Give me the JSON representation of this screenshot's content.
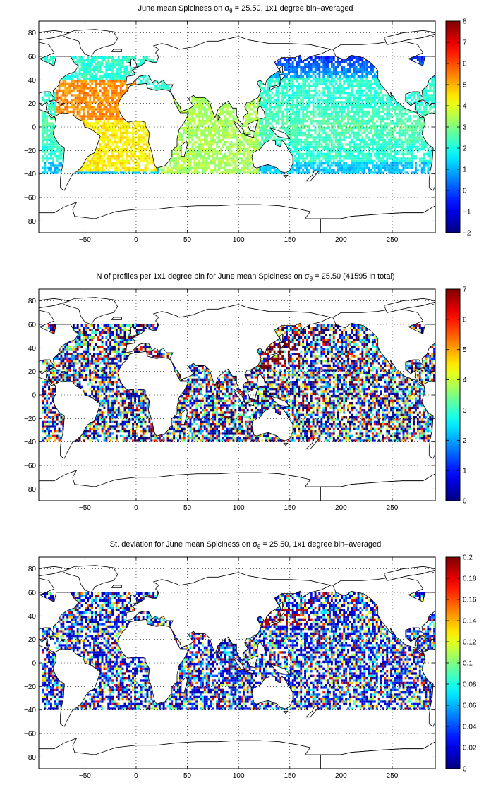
{
  "colors": {
    "land": "#ffffff",
    "coast": "#000000",
    "grid": "#000000",
    "colormap": "jet"
  },
  "chart_data": [
    {
      "type": "heatmap",
      "title_parts": [
        "June mean Spiciness on ",
        "σ",
        "θ",
        " = 25.50, 1x1 degree bin–averaged"
      ],
      "xlim": [
        -95,
        292
      ],
      "ylim": [
        -90,
        90
      ],
      "xticks": [
        -50,
        0,
        50,
        100,
        150,
        200,
        250
      ],
      "yticks": [
        -80,
        -60,
        -40,
        -20,
        0,
        20,
        40,
        60,
        80
      ],
      "x_tick_labels": [
        "−50",
        "0",
        "50",
        "100",
        "150",
        "200",
        "250"
      ],
      "y_tick_labels": [
        "−80",
        "−60",
        "−40",
        "−20",
        "0",
        "20",
        "40",
        "60",
        "80"
      ],
      "grid": true,
      "colorbar": {
        "range": [
          -2,
          8
        ],
        "ticks": [
          -2,
          -1,
          0,
          1,
          2,
          3,
          4,
          5,
          6,
          7,
          8
        ],
        "tick_labels": [
          "−2",
          "−1",
          "0",
          "1",
          "2",
          "3",
          "4",
          "5",
          "6",
          "7",
          "8"
        ]
      },
      "field": "spiciness",
      "value_summary": {
        "north_atlantic_subtropics": 5.5,
        "south_atlantic": 4.5,
        "indian_ocean": 3.5,
        "tropical_pacific": 2.5,
        "north_pacific_subpolar": -0.5,
        "southern_edge": 1.0
      }
    },
    {
      "type": "heatmap",
      "title_parts": [
        "N of profiles per 1x1 degree bin for June mean Spiciness on ",
        "σ",
        "θ",
        " = 25.50 (41595 in total)"
      ],
      "total_profiles": 41595,
      "xlim": [
        -95,
        292
      ],
      "ylim": [
        -90,
        90
      ],
      "xticks": [
        -50,
        0,
        50,
        100,
        150,
        200,
        250
      ],
      "yticks": [
        -80,
        -60,
        -40,
        -20,
        0,
        20,
        40,
        60,
        80
      ],
      "x_tick_labels": [
        "−50",
        "0",
        "50",
        "100",
        "150",
        "200",
        "250"
      ],
      "y_tick_labels": [
        "−80",
        "−60",
        "−40",
        "−20",
        "0",
        "20",
        "40",
        "60",
        "80"
      ],
      "grid": true,
      "colorbar": {
        "range": [
          0,
          7
        ],
        "ticks": [
          0,
          1,
          2,
          3,
          4,
          5,
          6,
          7
        ],
        "tick_labels": [
          "0",
          "1",
          "2",
          "3",
          "4",
          "5",
          "6",
          "7"
        ]
      },
      "field": "count"
    },
    {
      "type": "heatmap",
      "title_parts": [
        "St. deviation for June mean Spiciness on ",
        "σ",
        "θ",
        " = 25.50, 1x1 degree bin–averaged"
      ],
      "xlim": [
        -95,
        292
      ],
      "ylim": [
        -90,
        90
      ],
      "xticks": [
        -50,
        0,
        50,
        100,
        150,
        200,
        250
      ],
      "yticks": [
        -80,
        -60,
        -40,
        -20,
        0,
        20,
        40,
        60,
        80
      ],
      "x_tick_labels": [
        "−50",
        "0",
        "50",
        "100",
        "150",
        "200",
        "250"
      ],
      "y_tick_labels": [
        "−80",
        "−60",
        "−40",
        "−20",
        "0",
        "20",
        "40",
        "60",
        "80"
      ],
      "grid": true,
      "colorbar": {
        "range": [
          0,
          0.2
        ],
        "ticks": [
          0,
          0.02,
          0.04,
          0.06,
          0.08,
          0.1,
          0.12,
          0.14,
          0.16,
          0.18,
          0.2
        ],
        "tick_labels": [
          "0",
          "0.02",
          "0.04",
          "0.06",
          "0.08",
          "0.1",
          "0.12",
          "0.14",
          "0.16",
          "0.18",
          "0.2"
        ]
      },
      "field": "std"
    }
  ]
}
